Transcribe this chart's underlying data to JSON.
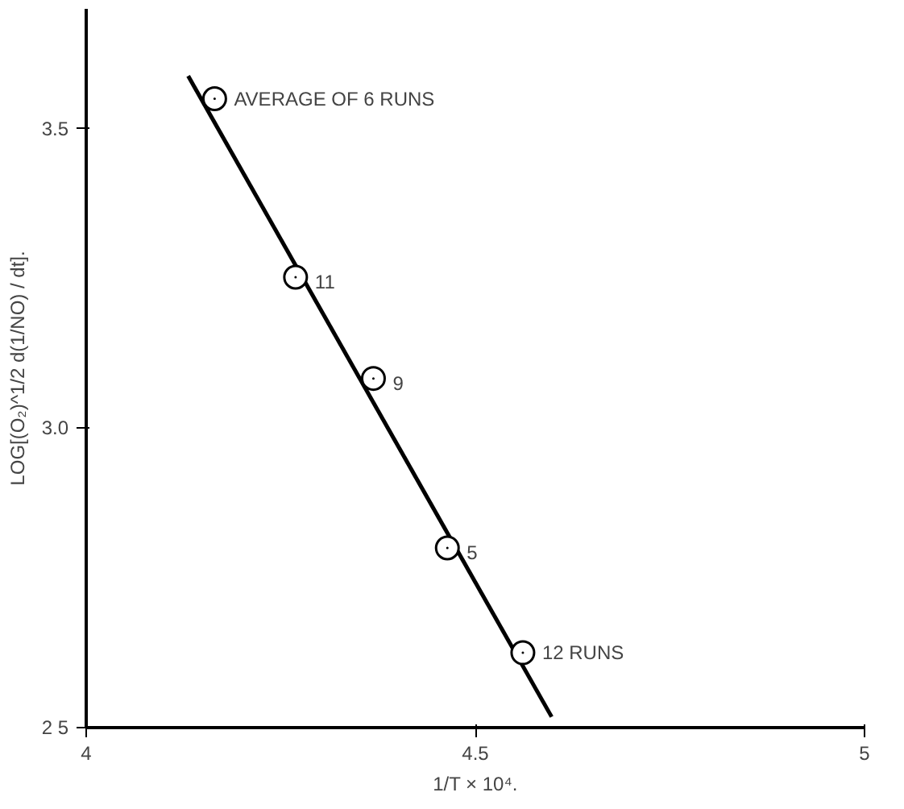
{
  "chart_data": {
    "type": "scatter",
    "xlabel": "1/T × 10⁴.",
    "ylabel": "LOG[(O₂)^1/2 d(1/NO) / dt].",
    "xlim": [
      4,
      5
    ],
    "ylim": [
      2.5,
      3.7
    ],
    "xticks": [
      4,
      4.5,
      5
    ],
    "yticks": [
      {
        "value": 2.5,
        "label": "2 5"
      },
      {
        "value": 3.0,
        "label": "3.0"
      },
      {
        "value": 3.5,
        "label": "3.5"
      }
    ],
    "grid": false,
    "marker": "circle",
    "series": [
      {
        "color": "#000000",
        "x": [
          4.165,
          4.269,
          4.369,
          4.464,
          4.561
        ],
        "values": [
          3.55,
          3.252,
          3.083,
          2.8,
          2.625
        ]
      },
      {
        "type": "line",
        "marker": "none",
        "color": "#000000",
        "x": [
          4.131,
          4.598
        ],
        "values": [
          3.588,
          2.518
        ]
      }
    ],
    "annotations": [
      {
        "text": "AVERAGE OF 6 RUNS",
        "x": 4.165,
        "y": 3.55
      },
      {
        "text": "11",
        "x": 4.269,
        "y": 3.252
      },
      {
        "text": "9",
        "x": 4.369,
        "y": 3.083
      },
      {
        "text": "5",
        "x": 4.464,
        "y": 2.8
      },
      {
        "text": "12 RUNS",
        "x": 4.561,
        "y": 2.625
      }
    ]
  }
}
